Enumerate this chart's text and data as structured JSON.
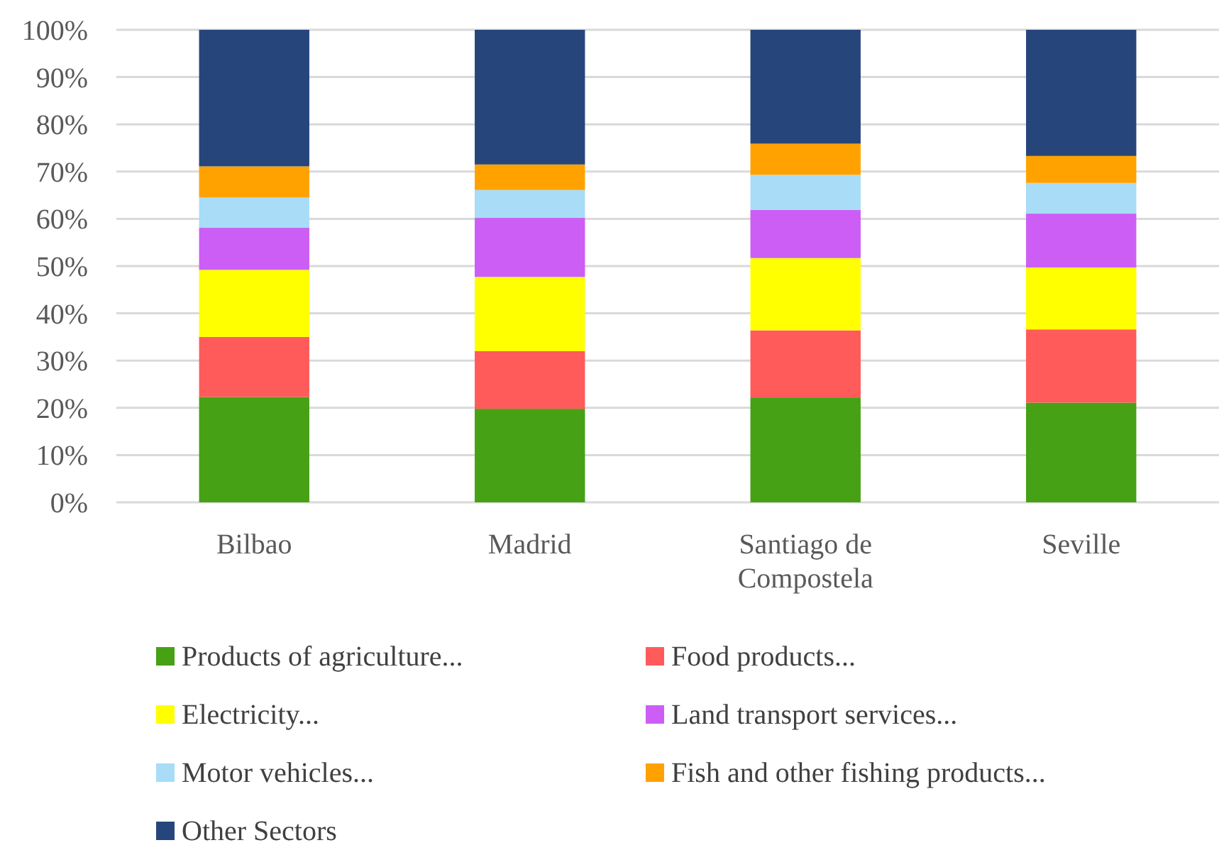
{
  "chart_data": {
    "type": "bar",
    "stacked": true,
    "categories": [
      "Bilbao",
      "Madrid",
      "Santiago de Compostela",
      "Seville"
    ],
    "series": [
      {
        "name": "Products of agriculture...",
        "color": "#46a114",
        "values": [
          22.3,
          19.8,
          22.2,
          21.1
        ]
      },
      {
        "name": "Food products...",
        "color": "#ff5b5b",
        "values": [
          12.7,
          12.2,
          14.2,
          15.5
        ]
      },
      {
        "name": "Electricity...",
        "color": "#ffff00",
        "values": [
          14.2,
          15.7,
          15.3,
          13.1
        ]
      },
      {
        "name": "Land transport services...",
        "color": "#cc5ef5",
        "values": [
          8.9,
          12.5,
          10.2,
          11.4
        ]
      },
      {
        "name": "Motor vehicles...",
        "color": "#a8dcf7",
        "values": [
          6.4,
          5.9,
          7.4,
          6.5
        ]
      },
      {
        "name": "Fish and other fishing products...",
        "color": "#ffa200",
        "values": [
          6.6,
          5.4,
          6.6,
          5.7
        ]
      },
      {
        "name": "Other Sectors",
        "color": "#26467b",
        "values": [
          28.9,
          28.5,
          24.1,
          26.7
        ]
      }
    ],
    "ylim": [
      0,
      100
    ],
    "yticks": [
      {
        "value": 0,
        "label": "0%"
      },
      {
        "value": 10,
        "label": "10%"
      },
      {
        "value": 20,
        "label": "20%"
      },
      {
        "value": 30,
        "label": "30%"
      },
      {
        "value": 40,
        "label": "40%"
      },
      {
        "value": 50,
        "label": "50%"
      },
      {
        "value": 60,
        "label": "60%"
      },
      {
        "value": 70,
        "label": "70%"
      },
      {
        "value": 80,
        "label": "80%"
      },
      {
        "value": 90,
        "label": "90%"
      },
      {
        "value": 100,
        "label": "100%"
      }
    ],
    "grid": "y",
    "legend": "bottom"
  }
}
